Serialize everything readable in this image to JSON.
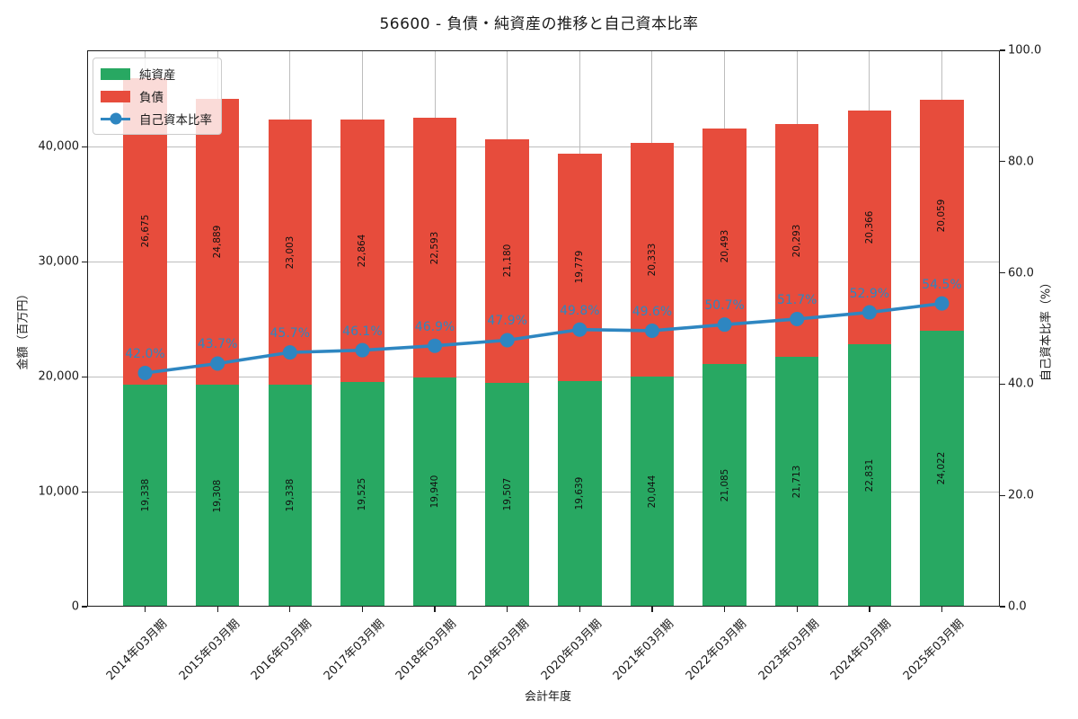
{
  "chart_data": {
    "type": "bar",
    "variant": "stacked-bars-with-line-overlay",
    "title": "56600 - 負債・純資産の推移と自己資本比率",
    "xlabel": "会計年度",
    "ylabel_left": "金額（百万円）",
    "ylabel_right": "自己資本比率（%）",
    "grid": true,
    "legend_position": "upper-left",
    "categories": [
      "2014年03月期",
      "2015年03月期",
      "2016年03月期",
      "2017年03月期",
      "2018年03月期",
      "2019年03月期",
      "2020年03月期",
      "2021年03月期",
      "2022年03月期",
      "2023年03月期",
      "2024年03月期",
      "2025年03月期"
    ],
    "series": [
      {
        "name": "純資産",
        "type": "bar-stack-bottom",
        "color": "#28a862",
        "values": [
          19338,
          19308,
          19338,
          19525,
          19940,
          19507,
          19639,
          20044,
          21085,
          21713,
          22831,
          24022
        ],
        "labels": [
          "19,338",
          "19,308",
          "19,338",
          "19,525",
          "19,940",
          "19,507",
          "19,639",
          "20,044",
          "21,085",
          "21,713",
          "22,831",
          "24,022"
        ]
      },
      {
        "name": "負債",
        "type": "bar-stack-top",
        "color": "#e74c3c",
        "values": [
          26675,
          24889,
          23003,
          22864,
          22593,
          21180,
          19779,
          20333,
          20493,
          20293,
          20366,
          20059
        ],
        "labels": [
          "26,675",
          "24,889",
          "23,003",
          "22,864",
          "22,593",
          "21,180",
          "19,779",
          "20,333",
          "20,493",
          "20,293",
          "20,366",
          "20,059"
        ]
      },
      {
        "name": "自己資本比率",
        "type": "line",
        "color": "#2e86c1",
        "axis": "right",
        "values": [
          42.0,
          43.7,
          45.7,
          46.1,
          46.9,
          47.9,
          49.8,
          49.6,
          50.7,
          51.7,
          52.9,
          54.5
        ],
        "labels": [
          "42.0%",
          "43.7%",
          "45.7%",
          "46.1%",
          "46.9%",
          "47.9%",
          "49.8%",
          "49.6%",
          "50.7%",
          "51.7%",
          "52.9%",
          "54.5%"
        ]
      }
    ],
    "axes": {
      "ylim_left": [
        0,
        48400
      ],
      "ylim_right": [
        0,
        100
      ],
      "left_ticks": [
        {
          "v": 0,
          "label": "0"
        },
        {
          "v": 10000,
          "label": "10,000"
        },
        {
          "v": 20000,
          "label": "20,000"
        },
        {
          "v": 30000,
          "label": "30,000"
        },
        {
          "v": 40000,
          "label": "40,000"
        }
      ],
      "right_ticks": [
        {
          "v": 0,
          "label": "0.0"
        },
        {
          "v": 20,
          "label": "20.0"
        },
        {
          "v": 40,
          "label": "40.0"
        },
        {
          "v": 60,
          "label": "60.0"
        },
        {
          "v": 80,
          "label": "80.0"
        },
        {
          "v": 100,
          "label": "100.0"
        }
      ]
    },
    "colors": {
      "grid": "#bdbdbd",
      "spine": "#1c1c1c",
      "bar_label_text": "#111111"
    }
  }
}
